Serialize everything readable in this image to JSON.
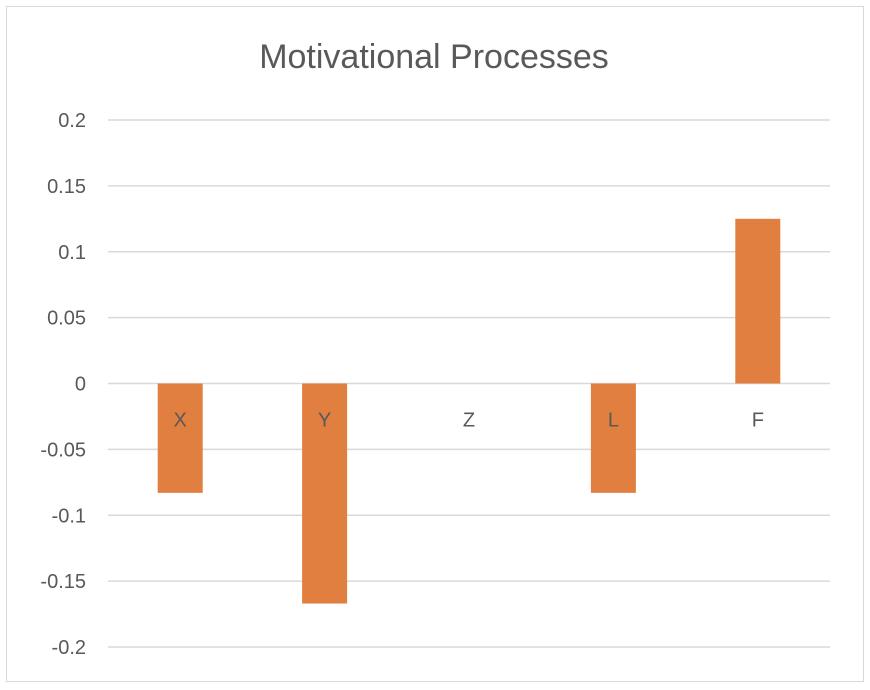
{
  "chart_data": {
    "type": "bar",
    "title": "Motivational Processes",
    "xlabel": "",
    "ylabel": "",
    "categories": [
      "X",
      "Y",
      "Z",
      "L",
      "F"
    ],
    "values": [
      -0.083,
      -0.167,
      0,
      -0.083,
      0.125
    ],
    "ylim": [
      -0.2,
      0.2
    ],
    "yticks": [
      0.2,
      0.15,
      0.1,
      0.05,
      0,
      -0.05,
      -0.1,
      -0.15,
      -0.2
    ],
    "ytick_labels": [
      "0.2",
      "0.15",
      "0.1",
      "0.05",
      "0",
      "-0.05",
      "-0.1",
      "-0.15",
      "-0.2"
    ],
    "grid": true,
    "legend": "none",
    "bar_color": "#e07f3f",
    "grid_color": "#d9d9d9",
    "text_color": "#595959"
  }
}
